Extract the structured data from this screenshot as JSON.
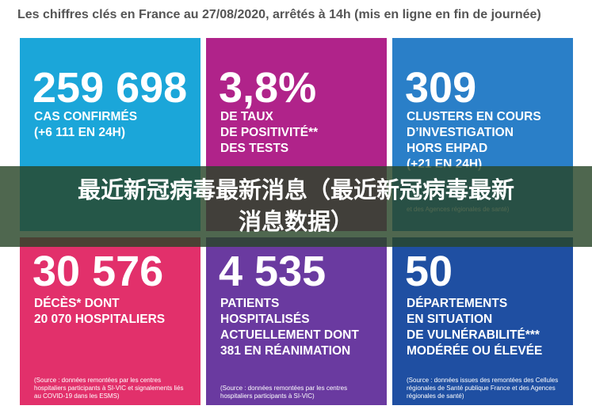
{
  "header": {
    "title": "Les chiffres clés en France au 27/08/2020, arrêtés à 14h (mis en ligne en fin de journée)"
  },
  "tiles": [
    {
      "number": "259 698",
      "lines": [
        "CAS CONFIRMÉS",
        "(+6 111 EN 24H)"
      ]
    },
    {
      "number": "3,8%",
      "lines": [
        "DE TAUX",
        "DE POSITIVITÉ**",
        "DES TESTS"
      ]
    },
    {
      "number": "309",
      "lines": [
        "CLUSTERS EN COURS",
        "D’INVESTIGATION",
        "HORS EHPAD",
        "(+21 EN 24H)"
      ],
      "note": "et des Agences régionales de santé)"
    },
    {
      "number": "30 576",
      "lines": [
        "DÉCÈS* DONT",
        "20 070 HOSPITALIERS"
      ],
      "note": "(Source : données remontées par les centres hospitaliers participants à SI-VIC et signalements liés au COVID-19 dans les ESMS)"
    },
    {
      "number": "4 535",
      "lines": [
        "PATIENTS",
        "HOSPITALISÉS",
        "ACTUELLEMENT DONT",
        "381 EN RÉANIMATION"
      ],
      "note": "(Source : données remontées par les centres hospitaliers participants à SI-VIC)"
    },
    {
      "number": "50",
      "lines": [
        "DÉPARTEMENTS",
        "EN SITUATION",
        "DE VULNÉRABILITÉ***",
        "MODÉRÉE OU ÉLEVÉE"
      ],
      "note": "(Source : données issues des remontées des Cellules régionales de Santé publique France et des Agences régionales de santé)"
    }
  ],
  "banner": {
    "lines": [
      "最近新冠病毒最新消息（最近新冠病毒最新",
      "消息数据）"
    ]
  }
}
